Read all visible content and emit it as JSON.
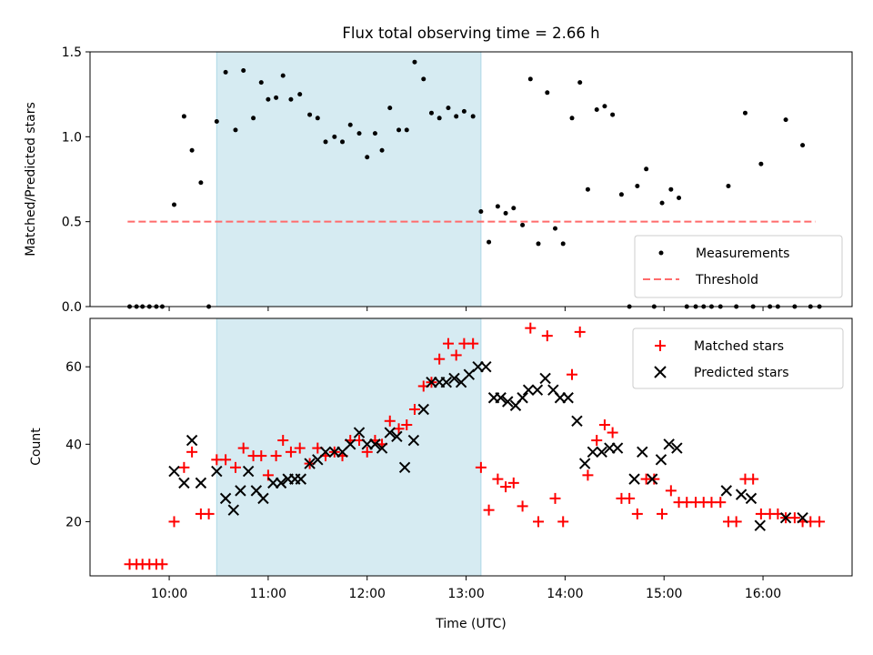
{
  "figure": {
    "title": "Flux total observing time = 2.66 h"
  },
  "colors": {
    "band": "#add8e6",
    "threshold": "#ff6b6b",
    "matched": "#ff0000",
    "predicted": "#000000",
    "measurement": "#000000"
  },
  "chart_data": [
    {
      "type": "scatter",
      "ylabel": "Matched/Predicted stars",
      "xlim": [
        9.2,
        16.9
      ],
      "ylim": [
        0,
        1.5
      ],
      "yticks": [
        0.0,
        0.5,
        1.0,
        1.5
      ],
      "ytick_labels": [
        "0.0",
        "0.5",
        "1.0",
        "1.5"
      ],
      "shaded_x_range": [
        10.48,
        13.15
      ],
      "threshold": {
        "y": 0.5,
        "x_range": [
          9.58,
          16.53
        ]
      },
      "legend": {
        "position": "lower-right",
        "entries": [
          "Measurements",
          "Threshold"
        ]
      },
      "series": [
        {
          "name": "Measurements",
          "x": [
            9.6,
            9.67,
            9.73,
            9.8,
            9.87,
            9.93,
            10.05,
            10.15,
            10.23,
            10.32,
            10.4,
            10.48,
            10.57,
            10.67,
            10.75,
            10.85,
            10.93,
            11.0,
            11.08,
            11.15,
            11.23,
            11.32,
            11.42,
            11.5,
            11.58,
            11.67,
            11.75,
            11.83,
            11.92,
            12.0,
            12.08,
            12.15,
            12.23,
            12.32,
            12.4,
            12.48,
            12.57,
            12.65,
            12.73,
            12.82,
            12.9,
            12.98,
            13.07,
            13.15,
            13.23,
            13.32,
            13.4,
            13.48,
            13.57,
            13.65,
            13.73,
            13.82,
            13.9,
            13.98,
            14.07,
            14.15,
            14.23,
            14.32,
            14.4,
            14.48,
            14.57,
            14.65,
            14.73,
            14.82,
            14.9,
            14.98,
            15.07,
            15.15,
            15.23,
            15.32,
            15.4,
            15.48,
            15.57,
            15.65,
            15.73,
            15.82,
            15.9,
            15.98,
            16.07,
            16.15,
            16.23,
            16.32,
            16.4,
            16.48,
            16.57
          ],
          "y": [
            0,
            0,
            0,
            0,
            0,
            0,
            0.6,
            1.12,
            0.92,
            0.73,
            0,
            1.09,
            1.38,
            1.04,
            1.39,
            1.11,
            1.32,
            1.22,
            1.23,
            1.36,
            1.22,
            1.25,
            1.13,
            1.11,
            0.97,
            1.0,
            0.97,
            1.07,
            1.02,
            0.88,
            1.02,
            0.92,
            1.17,
            1.04,
            1.04,
            1.44,
            1.34,
            1.14,
            1.11,
            1.17,
            1.12,
            1.15,
            1.12,
            0.56,
            0.38,
            0.59,
            0.55,
            0.58,
            0.48,
            1.34,
            0.37,
            1.26,
            0.46,
            0.37,
            1.11,
            1.32,
            0.69,
            1.16,
            1.18,
            1.13,
            0.66,
            0,
            0.71,
            0.81,
            0,
            0.61,
            0.69,
            0.64,
            0,
            0,
            0,
            0,
            0,
            0.71,
            0,
            1.14,
            0,
            0.84,
            0,
            0,
            1.1,
            0,
            0.95,
            0,
            0
          ]
        }
      ]
    },
    {
      "type": "scatter",
      "xlabel": "Time (UTC)",
      "ylabel": "Count",
      "xlim": [
        9.2,
        16.9
      ],
      "ylim": [
        6,
        72.5
      ],
      "xticks": [
        10,
        11,
        12,
        13,
        14,
        15,
        16
      ],
      "xtick_labels": [
        "10:00",
        "11:00",
        "12:00",
        "13:00",
        "14:00",
        "15:00",
        "16:00"
      ],
      "yticks": [
        20,
        40,
        60
      ],
      "ytick_labels": [
        "20",
        "40",
        "60"
      ],
      "shaded_x_range": [
        10.48,
        13.15
      ],
      "legend": {
        "position": "upper-right",
        "entries": [
          "Matched stars",
          "Predicted stars"
        ]
      },
      "series": [
        {
          "name": "Matched stars",
          "x": [
            9.6,
            9.67,
            9.73,
            9.8,
            9.87,
            9.93,
            10.05,
            10.15,
            10.23,
            10.32,
            10.4,
            10.48,
            10.57,
            10.67,
            10.75,
            10.85,
            10.93,
            11.0,
            11.08,
            11.15,
            11.23,
            11.32,
            11.42,
            11.5,
            11.58,
            11.67,
            11.75,
            11.83,
            11.92,
            12.0,
            12.08,
            12.15,
            12.23,
            12.32,
            12.4,
            12.48,
            12.57,
            12.65,
            12.73,
            12.82,
            12.9,
            12.98,
            13.07,
            13.15,
            13.23,
            13.32,
            13.4,
            13.48,
            13.57,
            13.65,
            13.73,
            13.82,
            13.9,
            13.98,
            14.07,
            14.15,
            14.23,
            14.32,
            14.4,
            14.48,
            14.57,
            14.65,
            14.73,
            14.82,
            14.9,
            14.98,
            15.07,
            15.15,
            15.23,
            15.32,
            15.4,
            15.48,
            15.57,
            15.65,
            15.73,
            15.82,
            15.9,
            15.98,
            16.07,
            16.15,
            16.23,
            16.32,
            16.4,
            16.48,
            16.57
          ],
          "y": [
            9,
            9,
            9,
            9,
            9,
            9,
            20,
            34,
            38,
            22,
            22,
            36,
            36,
            34,
            39,
            37,
            37,
            32,
            37,
            41,
            38,
            39,
            35,
            39,
            37,
            38,
            37,
            41,
            41,
            38,
            41,
            40,
            46,
            44,
            45,
            49,
            55,
            56,
            62,
            66,
            63,
            66,
            66,
            34,
            23,
            31,
            29,
            30,
            24,
            70,
            20,
            68,
            26,
            20,
            58,
            69,
            32,
            41,
            45,
            43,
            26,
            26,
            22,
            31,
            31,
            22,
            28,
            25,
            25,
            25,
            25,
            25,
            25,
            20,
            20,
            31,
            31,
            22,
            22,
            22,
            21,
            21,
            20,
            20,
            20
          ]
        },
        {
          "name": "Predicted stars",
          "x": [
            10.05,
            10.15,
            10.23,
            10.32,
            10.48,
            10.57,
            10.65,
            10.72,
            10.8,
            10.88,
            10.95,
            11.05,
            11.13,
            11.2,
            11.27,
            11.33,
            11.42,
            11.5,
            11.58,
            11.67,
            11.75,
            11.83,
            11.92,
            12.0,
            12.08,
            12.15,
            12.23,
            12.3,
            12.38,
            12.47,
            12.57,
            12.65,
            12.73,
            12.8,
            12.88,
            12.95,
            13.03,
            13.12,
            13.2,
            13.28,
            13.35,
            13.42,
            13.5,
            13.57,
            13.63,
            13.72,
            13.8,
            13.88,
            13.95,
            14.03,
            14.12,
            14.2,
            14.28,
            14.37,
            14.45,
            14.53,
            14.7,
            14.78,
            14.88,
            14.97,
            15.05,
            15.13,
            15.63,
            15.78,
            15.88,
            15.97,
            16.23,
            16.4
          ],
          "y": [
            33,
            30,
            41,
            30,
            33,
            26,
            23,
            28,
            33,
            28,
            26,
            30,
            30,
            31,
            31,
            31,
            35,
            36,
            38,
            38,
            38,
            40,
            43,
            40,
            40,
            39,
            43,
            42,
            34,
            41,
            49,
            56,
            56,
            56,
            57,
            56,
            58,
            60,
            60,
            52,
            52,
            51,
            50,
            52,
            54,
            54,
            57,
            54,
            52,
            52,
            46,
            35,
            38,
            38,
            39,
            39,
            31,
            38,
            31,
            36,
            40,
            39,
            28,
            27,
            26,
            19,
            21,
            21
          ]
        }
      ]
    }
  ]
}
